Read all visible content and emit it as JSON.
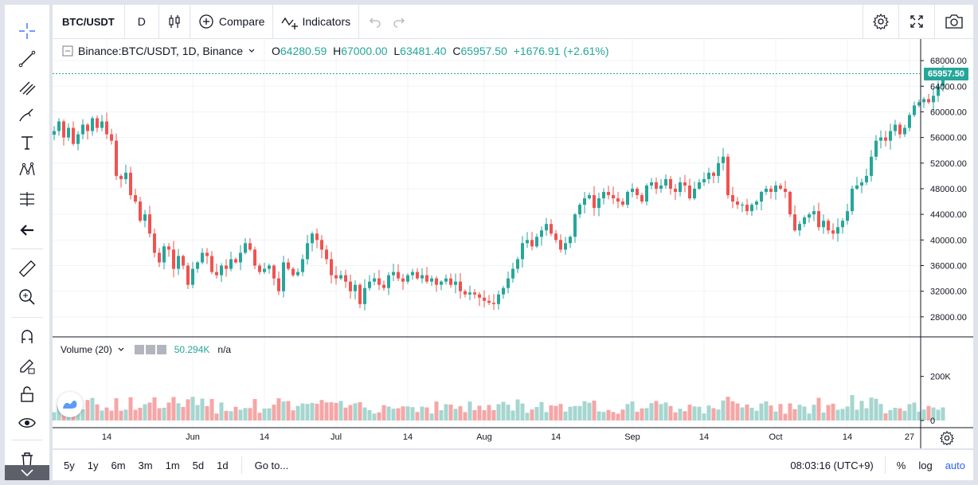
{
  "toolbar": {
    "symbol": "BTC/USDT",
    "interval": "D",
    "compare_label": "Compare",
    "indicators_label": "Indicators"
  },
  "legend": {
    "title": "Binance:BTC/USDT, 1D, Binance",
    "open_label": "O",
    "open": "64280.59",
    "high_label": "H",
    "high": "67000.00",
    "low_label": "L",
    "low": "63481.40",
    "close_label": "C",
    "close": "65957.50",
    "change": "+1676.91 (+2.61%)"
  },
  "volume_legend": {
    "label": "Volume (20)",
    "value": "50.294K",
    "ma": "n/a"
  },
  "last_price_label": "65957.50",
  "bottom_bar": {
    "ranges": [
      "5y",
      "1y",
      "6m",
      "3m",
      "1m",
      "5d",
      "1d"
    ],
    "goto": "Go to...",
    "time": "08:03:16 (UTC+9)",
    "percent": "%",
    "log": "log",
    "auto": "auto"
  },
  "colors": {
    "up": "#26a69a",
    "down": "#ef5350",
    "accent": "#2962ff"
  },
  "chart_data": {
    "type": "candlestick",
    "price_axis_ticks": [
      68000,
      64000,
      60000,
      56000,
      52000,
      48000,
      44000,
      40000,
      36000,
      32000,
      28000
    ],
    "price_axis_labels": [
      "68000.00",
      "64000.00",
      "60000.00",
      "56000.00",
      "52000.00",
      "48000.00",
      "44000.00",
      "40000.00",
      "36000.00",
      "32000.00",
      "28000.00"
    ],
    "volume_axis_labels": [
      "200K",
      "0"
    ],
    "volume_axis_ticks": [
      200,
      0
    ],
    "time_labels": [
      "14",
      "Jun",
      "14",
      "Jul",
      "14",
      "Aug",
      "14",
      "Sep",
      "14",
      "Oct",
      "14",
      "27"
    ],
    "time_label_days": [
      11,
      29,
      44,
      59,
      74,
      90,
      105,
      121,
      136,
      151,
      166,
      179
    ],
    "price_range": [
      25000,
      70000
    ],
    "closes": [
      57000,
      58500,
      56000,
      57500,
      55000,
      56500,
      58000,
      57000,
      59000,
      57500,
      58500,
      56500,
      55500,
      50000,
      49500,
      50500,
      47000,
      46000,
      43000,
      44000,
      41000,
      38000,
      36500,
      39000,
      38500,
      35500,
      37500,
      36000,
      33000,
      35500,
      36500,
      38000,
      37500,
      35000,
      34500,
      36000,
      35500,
      37000,
      36500,
      38000,
      39500,
      38500,
      36000,
      35000,
      35500,
      36000,
      34000,
      32000,
      36500,
      35500,
      34500,
      35000,
      37000,
      39500,
      41000,
      40000,
      38500,
      37000,
      34500,
      34000,
      34500,
      33500,
      32000,
      33000,
      30000,
      32500,
      33500,
      34000,
      33000,
      32500,
      34500,
      35000,
      34000,
      33500,
      34500,
      35000,
      34000,
      34500,
      33500,
      34000,
      33000,
      33500,
      34000,
      33000,
      33500,
      32000,
      31500,
      31800,
      31500,
      31000,
      30500,
      30200,
      30000,
      31500,
      32500,
      34000,
      35500,
      37000,
      39500,
      40000,
      39000,
      40500,
      41500,
      42500,
      41000,
      40000,
      38500,
      39500,
      40500,
      44000,
      45500,
      46500,
      47000,
      45000,
      46500,
      47500,
      47000,
      46500,
      46000,
      45500,
      47500,
      48000,
      47000,
      46000,
      48500,
      49000,
      48000,
      48500,
      49500,
      48000,
      47500,
      49000,
      48500,
      46500,
      48000,
      49000,
      49500,
      50500,
      50000,
      52000,
      53000,
      47000,
      46000,
      45500,
      45500,
      44500,
      45500,
      46000,
      47500,
      48000,
      47500,
      48500,
      48000,
      47500,
      44000,
      41500,
      42500,
      43500,
      44000,
      44500,
      42000,
      43000,
      41500,
      41000,
      42000,
      43000,
      44500,
      48000,
      48500,
      49000,
      50000,
      53000,
      55500,
      56000,
      55500,
      57000,
      58000,
      56500,
      57500,
      59500,
      61000,
      61500,
      62000,
      61500,
      62500,
      64000,
      65957.5
    ]
  }
}
